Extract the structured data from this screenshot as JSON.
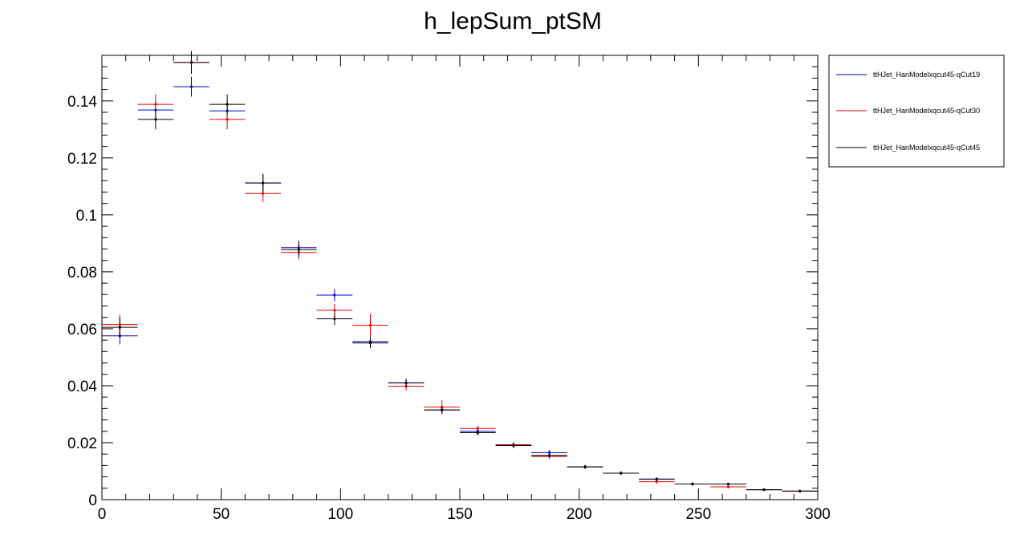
{
  "chart_data": {
    "type": "scatter",
    "title": "h_lepSum_ptSM",
    "xlabel": "",
    "ylabel": "",
    "xlim": [
      0,
      300
    ],
    "ylim": [
      0,
      0.156
    ],
    "bin_width": 15,
    "x_ticks": [
      0,
      50,
      100,
      150,
      200,
      250,
      300
    ],
    "y_ticks": [
      0,
      0.02,
      0.04,
      0.06,
      0.08,
      0.1,
      0.12,
      0.14
    ],
    "x_tick_labels": [
      "0",
      "50",
      "100",
      "150",
      "200",
      "250",
      "300"
    ],
    "y_tick_labels": [
      "0",
      "0.02",
      "0.04",
      "0.06",
      "0.08",
      "0.1",
      "0.12",
      "0.14"
    ],
    "x": [
      7.5,
      22.5,
      37.5,
      52.5,
      67.5,
      82.5,
      97.5,
      112.5,
      127.5,
      142.5,
      157.5,
      172.5,
      187.5,
      202.5,
      217.5,
      232.5,
      247.5,
      262.5,
      277.5,
      292.5
    ],
    "legend_position": "outside-top-right",
    "grid": false,
    "series": [
      {
        "name": "ttHJet_HanModelxqcut45-qCut19",
        "color": "#0000cc",
        "values": [
          0.0575,
          0.1368,
          0.145,
          0.1365,
          0.1112,
          0.0885,
          0.0718,
          0.0555,
          0.041,
          0.0315,
          0.024,
          0.0192,
          0.0165,
          0.0115,
          0.0093,
          0.0072,
          0.0055,
          0.0045,
          0.0035,
          0.003
        ],
        "errors": [
          0.003,
          0.0035,
          0.0035,
          0.0035,
          0.003,
          0.0025,
          0.0022,
          0.0018,
          0.0015,
          0.0012,
          0.001,
          0.0009,
          0.0009,
          0.0007,
          0.0006,
          0.0006,
          0.0005,
          0.0004,
          0.0004,
          0.0003
        ]
      },
      {
        "name": "ttHJet_HanModelxqcut45-qCut30",
        "color": "#ee0000",
        "values": [
          0.0615,
          0.1388,
          0.1535,
          0.1335,
          0.1075,
          0.0868,
          0.0665,
          0.0612,
          0.0398,
          0.0325,
          0.025,
          0.0193,
          0.0152,
          0.0115,
          0.0093,
          0.0063,
          0.0055,
          0.0045,
          0.0035,
          0.003
        ],
        "errors": [
          0.0035,
          0.0035,
          0.004,
          0.0035,
          0.003,
          0.0025,
          0.0022,
          0.004,
          0.0015,
          0.0025,
          0.001,
          0.0009,
          0.0009,
          0.0007,
          0.0006,
          0.0006,
          0.0005,
          0.0004,
          0.0004,
          0.0003
        ]
      },
      {
        "name": "ttHJet_HanModelxqcut45-qCut45",
        "color": "#000000",
        "values": [
          0.0605,
          0.1335,
          0.1535,
          0.1388,
          0.1112,
          0.0878,
          0.0635,
          0.055,
          0.041,
          0.0315,
          0.0235,
          0.019,
          0.0155,
          0.0115,
          0.0093,
          0.0072,
          0.0055,
          0.0055,
          0.0035,
          0.003
        ],
        "errors": [
          0.0035,
          0.0035,
          0.004,
          0.0035,
          0.0032,
          0.0025,
          0.0022,
          0.0018,
          0.0015,
          0.0012,
          0.001,
          0.0009,
          0.0009,
          0.0007,
          0.0006,
          0.0006,
          0.0005,
          0.0004,
          0.0004,
          0.0003
        ]
      }
    ]
  }
}
